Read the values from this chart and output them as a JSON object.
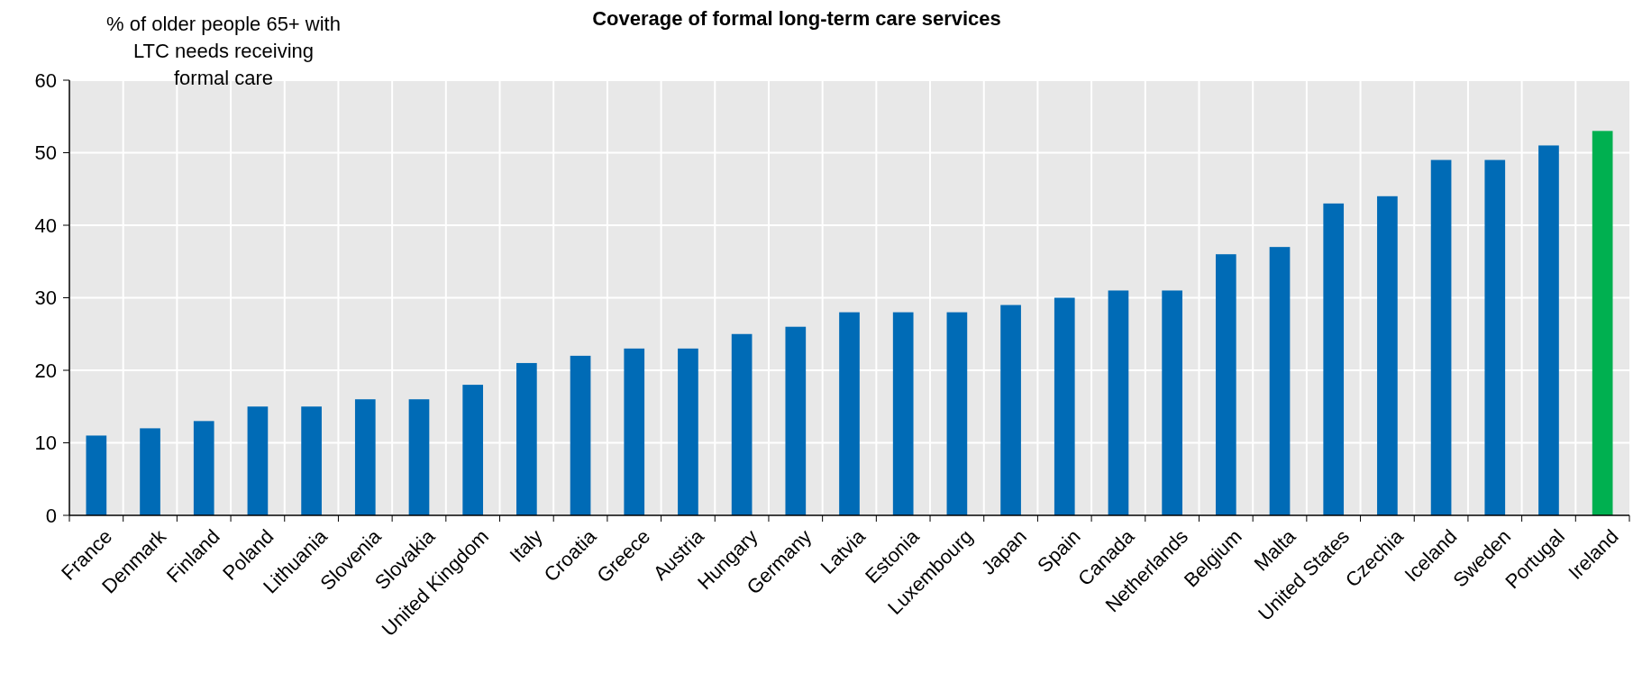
{
  "chart_data": {
    "type": "bar",
    "title": "Coverage of formal long-term care services",
    "ylabel": "% of older people 65+ with\nLTC needs receiving\nformal care",
    "categories": [
      "France",
      "Denmark",
      "Finland",
      "Poland",
      "Lithuania",
      "Slovenia",
      "Slovakia",
      "United Kingdom",
      "Italy",
      "Croatia",
      "Greece",
      "Austria",
      "Hungary",
      "Germany",
      "Latvia",
      "Estonia",
      "Luxembourg",
      "Japan",
      "Spain",
      "Canada",
      "Netherlands",
      "Belgium",
      "Malta",
      "United States",
      "Czechia",
      "Iceland",
      "Sweden",
      "Portugal",
      "Ireland"
    ],
    "values": [
      11,
      12,
      13,
      15,
      15,
      16,
      16,
      18,
      21,
      22,
      23,
      23,
      25,
      26,
      28,
      28,
      28,
      29,
      30,
      31,
      31,
      36,
      37,
      43,
      44,
      49,
      49,
      51,
      53
    ],
    "colors": [
      "#006bb6",
      "#006bb6",
      "#006bb6",
      "#006bb6",
      "#006bb6",
      "#006bb6",
      "#006bb6",
      "#006bb6",
      "#006bb6",
      "#006bb6",
      "#006bb6",
      "#006bb6",
      "#006bb6",
      "#006bb6",
      "#006bb6",
      "#006bb6",
      "#006bb6",
      "#006bb6",
      "#006bb6",
      "#006bb6",
      "#006bb6",
      "#006bb6",
      "#006bb6",
      "#006bb6",
      "#006bb6",
      "#006bb6",
      "#006bb6",
      "#006bb6",
      "#00b050"
    ],
    "ylim": [
      0,
      60
    ],
    "yticks": [
      0,
      10,
      20,
      30,
      40,
      50,
      60
    ],
    "grid": true
  }
}
